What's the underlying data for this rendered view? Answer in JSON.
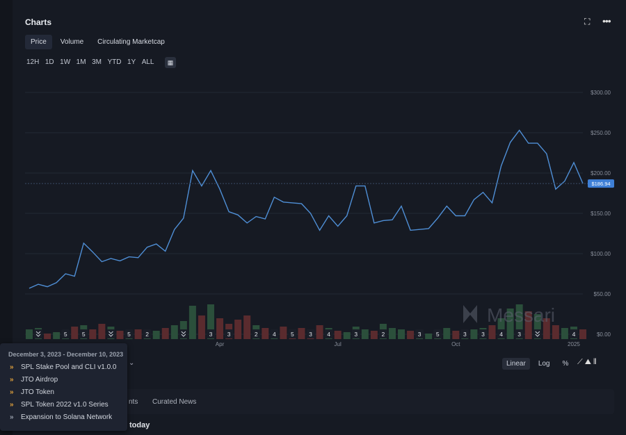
{
  "header": {
    "title": "Charts"
  },
  "tabs": [
    "Price",
    "Volume",
    "Circulating Marketcap"
  ],
  "ranges": [
    "12H",
    "1D",
    "1W",
    "1M",
    "3M",
    "YTD",
    "1Y",
    "ALL"
  ],
  "scales": [
    "Linear",
    "Log",
    "%"
  ],
  "watermark": "Messari",
  "chart_data": {
    "type": "line",
    "categories": [
      null,
      null,
      null,
      null,
      null,
      null,
      null,
      null,
      null,
      null,
      null,
      null,
      null,
      null,
      null,
      null,
      null,
      null,
      null,
      null,
      null,
      "Apr",
      null,
      null,
      null,
      null,
      null,
      null,
      null,
      null,
      null,
      null,
      null,
      null,
      "Jul",
      null,
      null,
      null,
      null,
      null,
      null,
      null,
      null,
      null,
      null,
      null,
      null,
      "Oct",
      null,
      null,
      null,
      null,
      null,
      null,
      null,
      null,
      null,
      null,
      null,
      null,
      "2025",
      null
    ],
    "series": [
      {
        "color": "#4f8fd6",
        "values": [
          57,
          62,
          59,
          64,
          75,
          72,
          113,
          102,
          90,
          94,
          91,
          96,
          95,
          108,
          112,
          103,
          130,
          144,
          203,
          184,
          203,
          180,
          152,
          148,
          138,
          146,
          143,
          170,
          164,
          163,
          162,
          150,
          129,
          147,
          134,
          147,
          184,
          184,
          138,
          141,
          142,
          159,
          129,
          130,
          131,
          144,
          159,
          147,
          147,
          167,
          176,
          163,
          209,
          238,
          253,
          237,
          237,
          224,
          180,
          190,
          213,
          186.94
        ]
      }
    ],
    "last_price_label": "$186.94",
    "volume": [
      14,
      16,
      8,
      10,
      12,
      18,
      20,
      14,
      22,
      18,
      12,
      10,
      14,
      10,
      12,
      16,
      20,
      26,
      48,
      34,
      50,
      30,
      22,
      28,
      34,
      20,
      16,
      12,
      18,
      14,
      16,
      14,
      20,
      16,
      12,
      10,
      18,
      14,
      12,
      22,
      16,
      14,
      12,
      10,
      8,
      12,
      16,
      12,
      10,
      14,
      16,
      20,
      30,
      44,
      50,
      40,
      36,
      30,
      20,
      16,
      18,
      14
    ],
    "volume_up_color": "#2b4f3b",
    "volume_down_color": "#5a2b2e",
    "event_counts": [
      null,
      1,
      null,
      null,
      5,
      null,
      5,
      null,
      null,
      1,
      null,
      5,
      null,
      2,
      null,
      null,
      null,
      1,
      null,
      null,
      3,
      null,
      3,
      null,
      null,
      2,
      null,
      4,
      null,
      5,
      null,
      3,
      null,
      4,
      null,
      null,
      3,
      null,
      null,
      2,
      null,
      null,
      null,
      3,
      null,
      5,
      null,
      null,
      3,
      null,
      3,
      null,
      4,
      null,
      3,
      null,
      1,
      null,
      null,
      null,
      4,
      null
    ],
    "ylim": [
      0,
      300
    ],
    "yticks": [
      {
        "value": 0,
        "label": "$0.00"
      },
      {
        "value": 50,
        "label": "$50.00"
      },
      {
        "value": 100,
        "label": "$100.00"
      },
      {
        "value": 150,
        "label": "$150.00"
      },
      {
        "value": 200,
        "label": "$200.00"
      },
      {
        "value": 250,
        "label": "$250.00"
      },
      {
        "value": 300,
        "label": "$300.00"
      }
    ],
    "grid": true
  },
  "tooltip": {
    "title": "December 3, 2023 - December 10, 2023",
    "items": [
      "SPL Stake Pool and CLI v1.0.0",
      "JTO Airdrop",
      "JTO Token",
      "SPL Token 2022 v1.0 Series",
      "Expansion to Solana Network"
    ]
  },
  "bottom": {
    "tab_partial": "nts",
    "tab": "Curated News",
    "heading_partial": "today"
  }
}
